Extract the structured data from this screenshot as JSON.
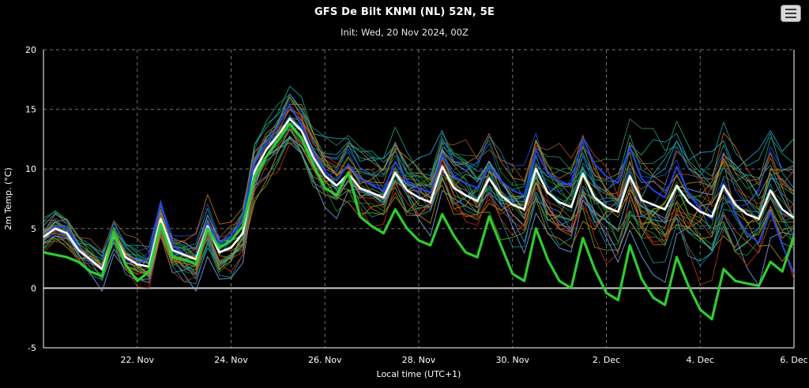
{
  "header": {
    "title": "GFS De Bilt KNMI (NL) 52N, 5E",
    "subtitle": "Init: Wed, 20 Nov 2024, 00Z"
  },
  "menu": {
    "icon": "hamburger-menu-icon"
  },
  "layout_colors": {
    "background": "#000000",
    "grid": "#9a9a9a",
    "axis": "#ffffff",
    "zero_line": "#cfcfcf",
    "tick_text": "#ffffff"
  },
  "chart_data": {
    "type": "line",
    "title": "GFS De Bilt KNMI (NL) 52N, 5E",
    "subtitle": "Init: Wed, 20 Nov 2024, 00Z",
    "xlabel": "Local time (UTC+1)",
    "ylabel": "2m Temp. (°C)",
    "ylim": [
      -5,
      20
    ],
    "y_ticks": [
      -5,
      0,
      5,
      10,
      15,
      20
    ],
    "x_start_days": 0,
    "x_end_days": 16,
    "x_step_days": 0.25,
    "x_ticks": [
      {
        "t": 2,
        "label": "22. Nov"
      },
      {
        "t": 4,
        "label": "24. Nov"
      },
      {
        "t": 6,
        "label": "26. Nov"
      },
      {
        "t": 8,
        "label": "28. Nov"
      },
      {
        "t": 10,
        "label": "30. Nov"
      },
      {
        "t": 12,
        "label": "2. Dec"
      },
      {
        "t": 14,
        "label": "4. Dec"
      },
      {
        "t": 16,
        "label": "6. Dec"
      }
    ],
    "grid_dash": "4 4",
    "series": [
      {
        "name": "ensemble-mean",
        "color": "#ffffff",
        "width": 2.6,
        "values": [
          4.3,
          5.0,
          4.6,
          3.2,
          2.4,
          1.6,
          4.4,
          2.6,
          2.0,
          1.8,
          5.8,
          3.2,
          2.8,
          2.4,
          5.2,
          3.0,
          3.4,
          4.6,
          9.8,
          11.6,
          12.8,
          14.2,
          13.2,
          11.0,
          9.4,
          8.6,
          9.6,
          8.4,
          8.0,
          7.6,
          9.7,
          8.2,
          7.6,
          7.2,
          10.2,
          8.4,
          7.8,
          7.3,
          9.2,
          7.8,
          7.0,
          6.6,
          10.0,
          8.0,
          7.2,
          6.8,
          9.6,
          7.6,
          6.8,
          6.4,
          9.4,
          7.4,
          7.0,
          6.6,
          8.6,
          7.2,
          6.4,
          6.0,
          8.6,
          7.0,
          6.2,
          5.8,
          8.2,
          6.6,
          5.9
        ]
      },
      {
        "name": "operational",
        "color": "#2ecc2e",
        "width": 3.2,
        "values": [
          3.0,
          2.8,
          2.6,
          2.2,
          1.4,
          1.0,
          4.6,
          2.0,
          0.6,
          1.4,
          5.4,
          2.6,
          2.4,
          2.0,
          5.0,
          3.4,
          4.0,
          5.2,
          9.4,
          11.0,
          12.4,
          13.8,
          12.6,
          10.4,
          8.4,
          7.8,
          9.7,
          6.0,
          5.2,
          4.6,
          6.6,
          5.0,
          4.0,
          3.6,
          6.2,
          4.4,
          3.0,
          2.6,
          6.0,
          3.6,
          1.2,
          0.6,
          5.0,
          2.4,
          0.6,
          0.0,
          4.2,
          1.6,
          -0.4,
          -1.0,
          3.6,
          0.8,
          -0.8,
          -1.4,
          2.6,
          0.2,
          -1.8,
          -2.6,
          1.6,
          0.6,
          0.4,
          0.2,
          2.2,
          1.4,
          4.4
        ]
      },
      {
        "name": "member-blue",
        "color": "#2244dd",
        "width": 2.0,
        "values": [
          4.4,
          5.2,
          5.0,
          3.4,
          2.2,
          1.8,
          4.2,
          2.4,
          2.0,
          2.6,
          7.2,
          3.6,
          2.8,
          2.4,
          5.4,
          3.8,
          4.4,
          5.6,
          10.4,
          12.2,
          13.6,
          15.3,
          13.8,
          11.4,
          9.8,
          9.0,
          10.4,
          9.2,
          8.6,
          8.2,
          10.6,
          9.0,
          8.4,
          8.0,
          11.2,
          9.4,
          8.8,
          8.4,
          10.2,
          9.0,
          8.2,
          7.8,
          11.6,
          9.6,
          9.0,
          8.6,
          12.6,
          10.4,
          9.4,
          8.8,
          11.8,
          9.2,
          8.2,
          7.6,
          10.2,
          8.0,
          6.6,
          5.8,
          8.8,
          6.2,
          4.6,
          3.8,
          6.4,
          3.6,
          1.2
        ]
      }
    ],
    "ensemble": {
      "count": 30,
      "seed": 7,
      "line_width": 1,
      "opacity": 0.85,
      "base_series": "ensemble-mean",
      "spread_ramp_base": 0.55,
      "spread_ramp_slope": 0.12,
      "colors": [
        "#2e8b57",
        "#228b22",
        "#66aa22",
        "#1e9e7a",
        "#17a2a2",
        "#0f8f8f",
        "#2aa7c7",
        "#3f8fd2",
        "#2255cc",
        "#7aa7e8",
        "#c08a18",
        "#d2691e",
        "#a0522d",
        "#b8860b",
        "#c03020"
      ]
    }
  }
}
